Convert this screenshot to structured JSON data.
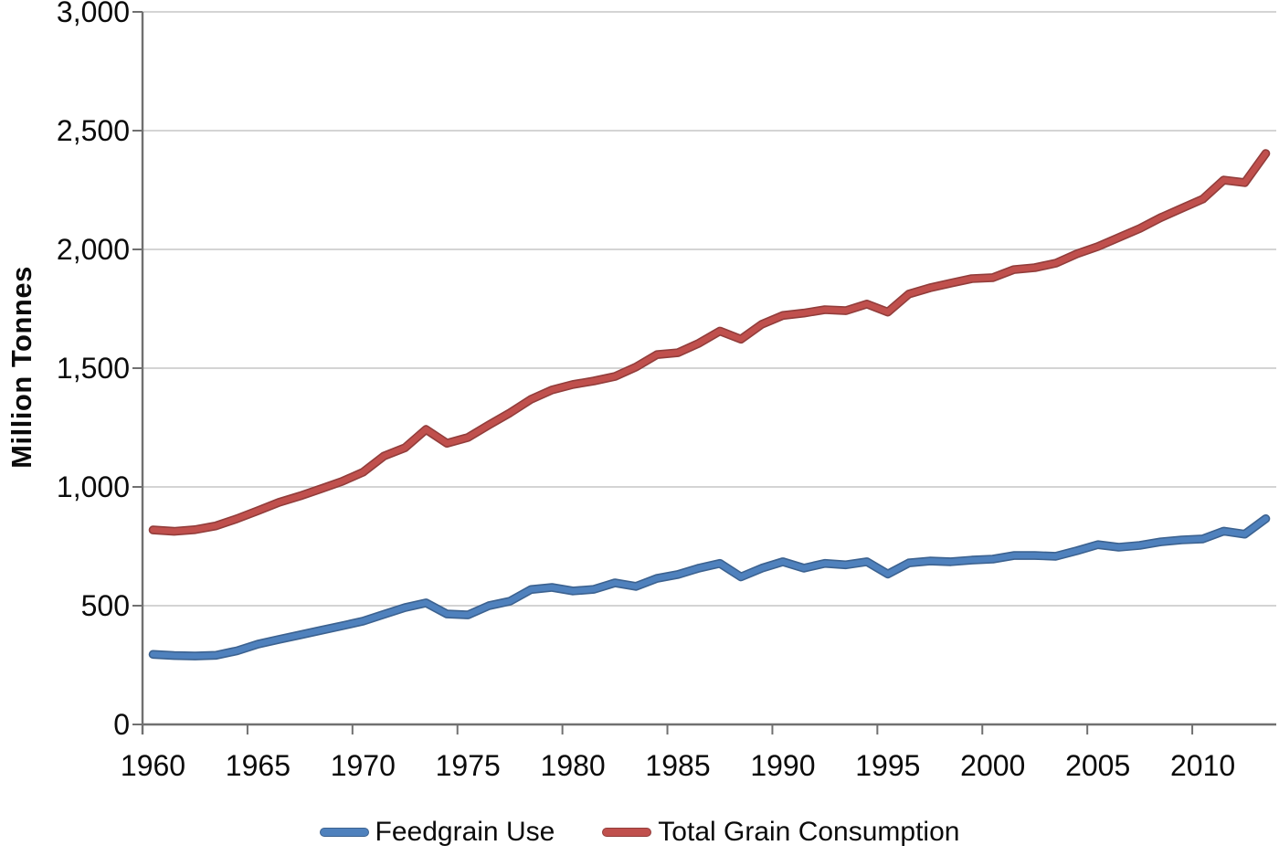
{
  "chart_data": {
    "type": "line",
    "title": "",
    "xlabel": "",
    "ylabel": "Million Tonnes",
    "ylim": [
      0,
      3000
    ],
    "ytick_interval": 500,
    "ytick_labels": [
      "0",
      "500",
      "1,000",
      "1,500",
      "2,000",
      "2,500",
      "3,000"
    ],
    "xtick_labels": [
      "1960",
      "1965",
      "1970",
      "1975",
      "1980",
      "1985",
      "1990",
      "1995",
      "2000",
      "2005",
      "2010"
    ],
    "xtick_step_years": 5,
    "grid": "horizontal",
    "legend_position": "bottom",
    "x": [
      1960,
      1961,
      1962,
      1963,
      1964,
      1965,
      1966,
      1967,
      1968,
      1969,
      1970,
      1971,
      1972,
      1973,
      1974,
      1975,
      1976,
      1977,
      1978,
      1979,
      1980,
      1981,
      1982,
      1983,
      1984,
      1985,
      1986,
      1987,
      1988,
      1989,
      1990,
      1991,
      1992,
      1993,
      1994,
      1995,
      1996,
      1997,
      1998,
      1999,
      2000,
      2001,
      2002,
      2003,
      2004,
      2005,
      2006,
      2007,
      2008,
      2009,
      2010,
      2011,
      2012,
      2013
    ],
    "series": [
      {
        "name": "Feedgrain Use",
        "color": "#4F81BD",
        "values": [
          295,
          290,
          288,
          291,
          310,
          338,
          358,
          377,
          396,
          415,
          435,
          464,
          492,
          512,
          465,
          461,
          500,
          519,
          568,
          577,
          562,
          569,
          596,
          581,
          615,
          631,
          658,
          678,
          621,
          658,
          685,
          658,
          678,
          672,
          685,
          633,
          680,
          688,
          685,
          692,
          696,
          711,
          711,
          708,
          731,
          757,
          746,
          754,
          769,
          777,
          781,
          814,
          801,
          866
        ]
      },
      {
        "name": "Total Grain Consumption",
        "color": "#C0504D",
        "values": [
          819,
          813,
          820,
          836,
          866,
          900,
          935,
          962,
          992,
          1023,
          1062,
          1130,
          1165,
          1242,
          1184,
          1208,
          1261,
          1312,
          1369,
          1408,
          1431,
          1446,
          1465,
          1505,
          1557,
          1565,
          1605,
          1656,
          1622,
          1685,
          1722,
          1732,
          1746,
          1742,
          1770,
          1736,
          1812,
          1838,
          1858,
          1877,
          1881,
          1915,
          1923,
          1942,
          1981,
          2012,
          2050,
          2088,
          2134,
          2173,
          2212,
          2292,
          2281,
          2404
        ]
      }
    ],
    "axis_color": "#707070",
    "gridline_color": "#c6c6c6",
    "text_color": "#0b0b0b"
  }
}
